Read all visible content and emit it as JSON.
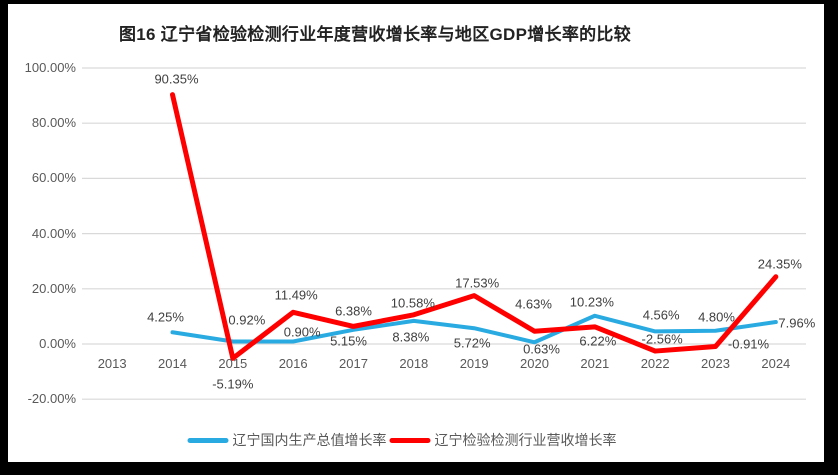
{
  "title": {
    "text": "图16  辽宁省检验检测行业年度营收增长率与地区GDP增长率的比较"
  },
  "colors": {
    "frame": "#000000",
    "panel": "#ffffff",
    "grid": "#d9d9d9",
    "axis_text": "#595959",
    "data_label_text": "#404040",
    "title_text": "#222222",
    "series_blue": "#29abe2",
    "series_red": "#fe0000"
  },
  "chart_data": {
    "type": "line",
    "title": "图16  辽宁省检验检测行业年度营收增长率与地区GDP增长率的比较",
    "xlabel": "",
    "ylabel": "",
    "ylim": [
      -20,
      100
    ],
    "grid": true,
    "legend_position": "bottom",
    "categories": [
      "2013",
      "2014",
      "2015",
      "2016",
      "2017",
      "2018",
      "2019",
      "2020",
      "2021",
      "2022",
      "2023",
      "2024"
    ],
    "y_ticks": [
      {
        "value": 100,
        "label": "100.00%"
      },
      {
        "value": 80,
        "label": "80.00%"
      },
      {
        "value": 60,
        "label": "60.00%"
      },
      {
        "value": 40,
        "label": "40.00%"
      },
      {
        "value": 20,
        "label": "20.00%"
      },
      {
        "value": 0,
        "label": "0.00%"
      },
      {
        "value": -20,
        "label": "-20.00%"
      }
    ],
    "series": [
      {
        "name": "辽宁国内生产总值增长率",
        "color": "#29abe2",
        "line_width": 4,
        "values": [
          null,
          4.25,
          0.92,
          0.9,
          5.15,
          8.38,
          5.72,
          0.63,
          10.23,
          4.56,
          4.8,
          7.96
        ],
        "data_labels": [
          null,
          "4.25%",
          "0.92%",
          "0.90%",
          "5.15%",
          "8.38%",
          "5.72%",
          "0.63%",
          "10.23%",
          "4.56%",
          "4.80%",
          "7.96%"
        ],
        "label_offsets": [
          null,
          [
            -7,
            -15
          ],
          [
            14,
            -21
          ],
          [
            9,
            -10
          ],
          [
            -5,
            11
          ],
          [
            -3,
            16
          ],
          [
            -2,
            15
          ],
          [
            7,
            7
          ],
          [
            -3,
            -14
          ],
          [
            6,
            -16
          ],
          [
            1,
            -14
          ],
          [
            21,
            1
          ]
        ]
      },
      {
        "name": "辽宁检验检测行业营收增长率",
        "color": "#fe0000",
        "line_width": 5,
        "values": [
          null,
          90.35,
          -5.19,
          11.49,
          6.38,
          10.58,
          17.53,
          4.63,
          6.22,
          -2.56,
          -0.91,
          24.35
        ],
        "data_labels": [
          null,
          "90.35%",
          "-5.19%",
          "11.49%",
          "6.38%",
          "10.58%",
          "17.53%",
          "4.63%",
          "6.22%",
          "-2.56%",
          "-0.91%",
          "24.35%"
        ],
        "label_offsets": [
          null,
          [
            4,
            -16
          ],
          [
            0,
            26
          ],
          [
            3,
            -17
          ],
          [
            0,
            -15
          ],
          [
            -1,
            -12
          ],
          [
            3,
            -13
          ],
          [
            -1,
            -27
          ],
          [
            3,
            14
          ],
          [
            7,
            -12
          ],
          [
            33,
            -3
          ],
          [
            4,
            -13
          ]
        ]
      }
    ]
  }
}
